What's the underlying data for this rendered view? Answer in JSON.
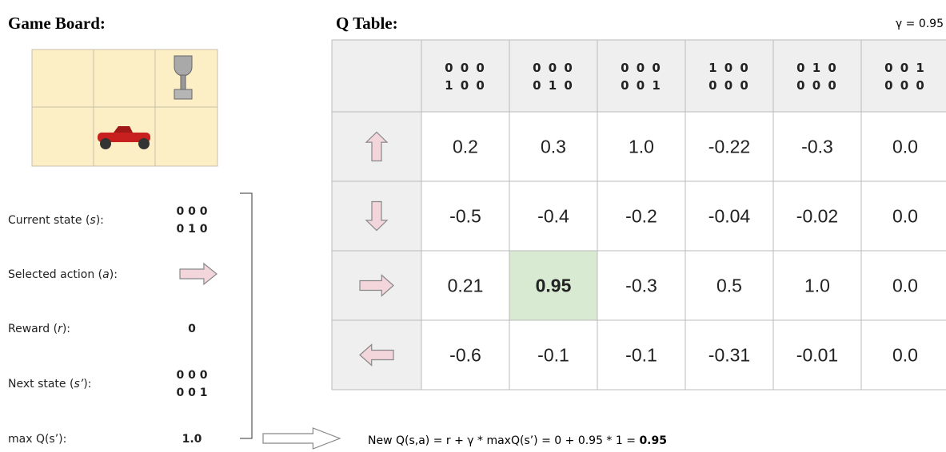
{
  "game_board": {
    "title": "Game Board:"
  },
  "q_table": {
    "title": "Q Table:",
    "gamma": "γ = 0.95",
    "columns": [
      [
        "0 0 0",
        "1 0 0"
      ],
      [
        "0 0 0",
        "0 1 0"
      ],
      [
        "0 0 0",
        "0 0 1"
      ],
      [
        "1 0 0",
        "0 0 0"
      ],
      [
        "0 1 0",
        "0 0 0"
      ],
      [
        "0 0 1",
        "0 0 0"
      ]
    ],
    "rows": [
      [
        "0.2",
        "0.3",
        "1.0",
        "-0.22",
        "-0.3",
        "0.0"
      ],
      [
        "-0.5",
        "-0.4",
        "-0.2",
        "-0.04",
        "-0.02",
        "0.0"
      ],
      [
        "0.21",
        "0.95",
        "-0.3",
        "0.5",
        "1.0",
        "0.0"
      ],
      [
        "-0.6",
        "-0.1",
        "-0.1",
        "-0.31",
        "-0.01",
        "0.0"
      ]
    ],
    "highlight": {
      "row": 2,
      "col": 1
    }
  },
  "panel": {
    "items": [
      {
        "label": [
          "Current state (",
          "s",
          "):"
        ],
        "value": [
          "0 0 0",
          "0 1 0"
        ]
      },
      {
        "label": [
          "Selected action (",
          "a",
          "):"
        ]
      },
      {
        "label": [
          "Reward (",
          "r",
          "):"
        ],
        "value": [
          "0"
        ]
      },
      {
        "label": [
          "Next state (",
          "s’",
          "):"
        ],
        "value": [
          "0 0 0",
          "0 0 1"
        ]
      },
      {
        "label": [
          "max Q(s’):"
        ],
        "value": [
          "1.0"
        ]
      }
    ],
    "formula": [
      "New Q(s,a) = r + γ * maxQ(s’) = 0 + 0.95 * 1 = ",
      "0.95"
    ]
  }
}
